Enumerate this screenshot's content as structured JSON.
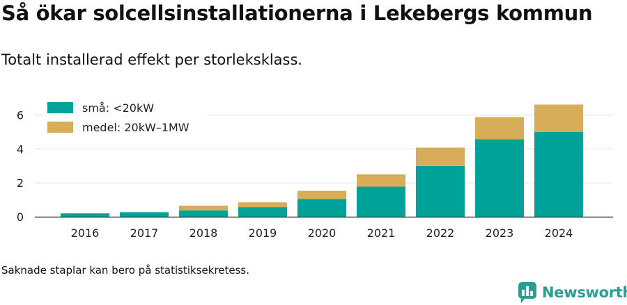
{
  "title": "Så ökar solcellsinstallationerna i Lekebergs kommun",
  "subtitle": "Totalt installerad effekt per storleksklass.",
  "footnote": "Saknade staplar kan bero på statistiksekretess.",
  "brand": {
    "name": "Newsworthy",
    "icon": "newsworthy-logo-icon",
    "color": "#2d9c92"
  },
  "chart_data": {
    "type": "bar",
    "stacked": true,
    "categories": [
      "2016",
      "2017",
      "2018",
      "2019",
      "2020",
      "2021",
      "2022",
      "2023",
      "2024"
    ],
    "series": [
      {
        "name": "små: <20kW",
        "color": "#00a29a",
        "values": [
          0.2,
          0.27,
          0.38,
          0.57,
          1.05,
          1.78,
          3.0,
          4.58,
          5.0
        ]
      },
      {
        "name": "medel: 20kW–1MW",
        "color": "#d8ad5a",
        "values": [
          0.0,
          0.0,
          0.28,
          0.28,
          0.48,
          0.72,
          1.08,
          1.3,
          1.62
        ]
      }
    ],
    "yticks": [
      0,
      2,
      4,
      6
    ],
    "ylim": [
      0,
      7
    ],
    "grid": true,
    "legend": "top-left",
    "xlabel": "",
    "ylabel": ""
  }
}
